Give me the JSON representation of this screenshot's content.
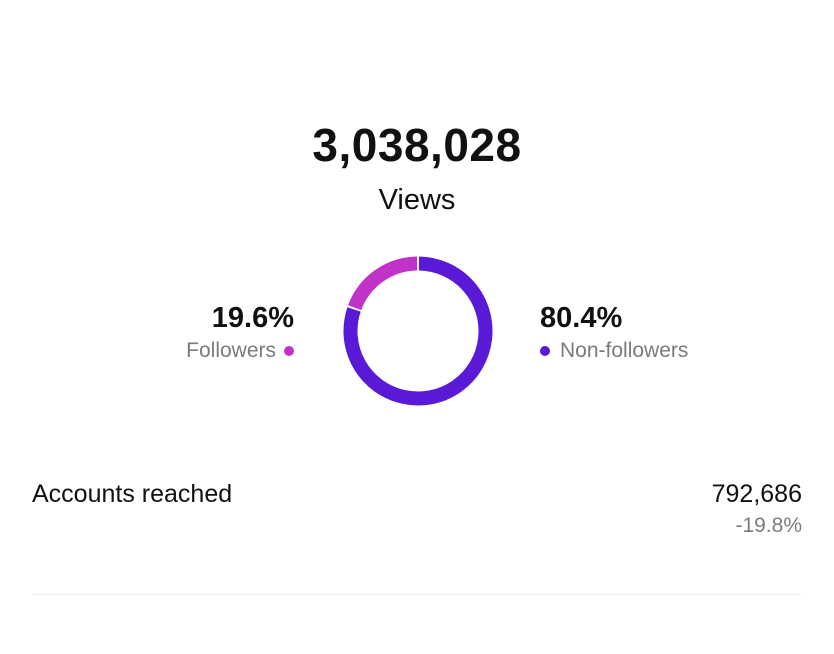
{
  "views": {
    "total": "3,038,028",
    "label": "Views"
  },
  "audience": {
    "followers": {
      "percent_label": "19.6%",
      "label": "Followers",
      "value": 19.6,
      "color": "#c132c9"
    },
    "non_followers": {
      "percent_label": "80.4%",
      "label": "Non-followers",
      "value": 80.4,
      "color": "#5a19d6"
    }
  },
  "accounts_reached": {
    "label": "Accounts reached",
    "value": "792,686",
    "change": "-19.8%"
  }
}
